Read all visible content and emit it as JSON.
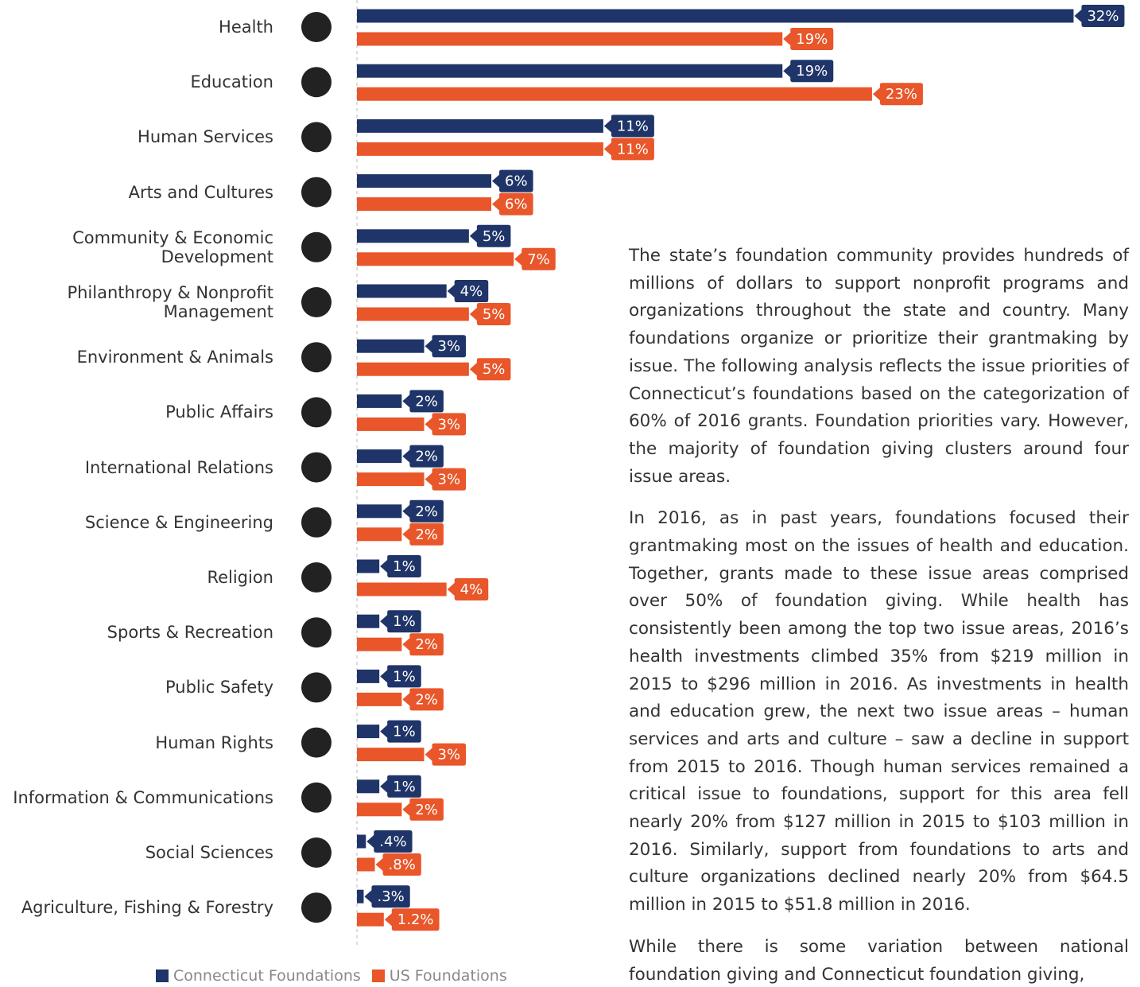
{
  "chart_data": {
    "type": "bar",
    "orientation": "horizontal",
    "categories": [
      "Health",
      "Education",
      "Human Services",
      "Arts and Cultures",
      "Community & Economic\nDevelopment",
      "Philanthropy & Nonprofit\nManagement",
      "Environment & Animals",
      "Public Affairs",
      "International Relations",
      "Science & Engineering",
      "Religion",
      "Sports & Recreation",
      "Public Safety",
      "Human Rights",
      "Information & Communications",
      "Social Sciences",
      "Agriculture, Fishing & Forestry"
    ],
    "series": [
      {
        "name": "Connecticut Foundations",
        "color": "#1f3468",
        "values": [
          32,
          19,
          11,
          6,
          5,
          4,
          3,
          2,
          2,
          2,
          1,
          1,
          1,
          1,
          1,
          0.4,
          0.3
        ],
        "value_labels": [
          "32%",
          "19%",
          "11%",
          "6%",
          "5%",
          "4%",
          "3%",
          "2%",
          "2%",
          "2%",
          "1%",
          "1%",
          "1%",
          "1%",
          "1%",
          ".4%",
          ".3%"
        ]
      },
      {
        "name": "US Foundations",
        "color": "#e8562a",
        "values": [
          19,
          23,
          11,
          6,
          7,
          5,
          5,
          3,
          3,
          2,
          4,
          2,
          2,
          3,
          2,
          0.8,
          1.2
        ],
        "value_labels": [
          "19%",
          "23%",
          "11%",
          "6%",
          "7%",
          "5%",
          "5%",
          "3%",
          "3%",
          "2%",
          "4%",
          "2%",
          "2%",
          "3%",
          "2%",
          ".8%",
          "1.2%"
        ]
      }
    ]
  },
  "paragraphs": [
    "The state’s foundation community provides hundreds of millions of dollars to support nonprofit programs and organizations throughout the state and country. Many foundations organize or prioritize their grantmaking by issue. The following analysis reflects the issue priorities of Connecticut’s foundations based on the categorization of 60% of 2016 grants. Foundation priorities vary. However, the majority of foundation giving clusters around four issue areas.",
    "In 2016, as in past years, foundations focused their grantmaking most on the issues of health and education. Together, grants made to these issue areas comprised over 50% of foundation giving. While health has consistently been among the top two issue areas, 2016’s health investments climbed 35% from $219 million in 2015 to $296 million in 2016. As investments in health and education grew, the next two issue areas – human services and arts and culture – saw a decline in support from 2015 to 2016. Though human services remained a critical issue to foundations, support for this area fell nearly 20% from $127 million in 2015 to $103 million in 2016. Similarly, support from foundations to arts and culture organizations declined nearly 20% from $64.5 million in 2015 to $51.8 million in 2016.",
    "While there is some variation between national foundation giving and Connecticut foundation giving,"
  ]
}
